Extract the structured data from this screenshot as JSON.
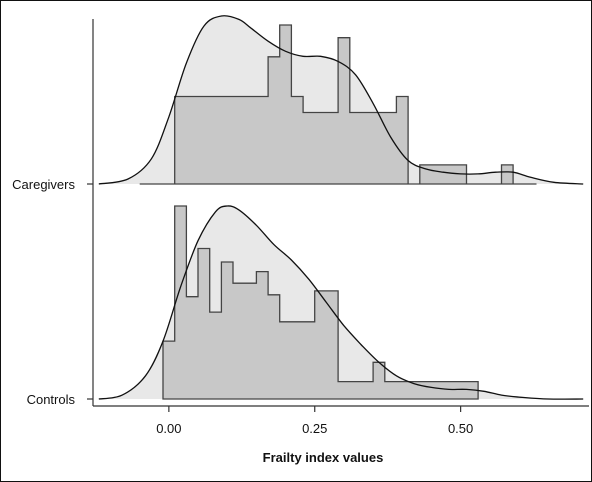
{
  "chart_data": {
    "type": "area",
    "title": "",
    "xlabel": "Frailty index values",
    "ylabel": "",
    "xlim": [
      -0.13,
      0.72
    ],
    "x_ticks": [
      0.0,
      0.25,
      0.5
    ],
    "x_tick_labels": [
      "0.00",
      "0.25",
      "0.50"
    ],
    "y_categories": [
      "Caregivers",
      "Controls"
    ],
    "grid": false,
    "legend": "none",
    "colors": {
      "density_fill": "#e8e8e8",
      "density_line": "#111111",
      "histogram_fill": "#c8c8c8",
      "histogram_line": "#444444",
      "axis": "#333333"
    },
    "series": [
      {
        "name": "Caregivers",
        "histogram_bin_edges": [
          -0.05,
          -0.01,
          0.01,
          0.03,
          0.05,
          0.07,
          0.09,
          0.11,
          0.13,
          0.15,
          0.17,
          0.19,
          0.21,
          0.23,
          0.25,
          0.27,
          0.29,
          0.31,
          0.33,
          0.35,
          0.37,
          0.39,
          0.41,
          0.43,
          0.45,
          0.47,
          0.49,
          0.51,
          0.53,
          0.55,
          0.57,
          0.59,
          0.61,
          0.63
        ],
        "histogram_values": [
          0,
          0,
          0.55,
          0.55,
          0.55,
          0.55,
          0.55,
          0.55,
          0.55,
          0.55,
          0.8,
          1.0,
          0.55,
          0.45,
          0.45,
          0.45,
          0.92,
          0.45,
          0.45,
          0.45,
          0.45,
          0.55,
          0,
          0.12,
          0.12,
          0.12,
          0.12,
          0,
          0,
          0,
          0.12,
          0,
          0
        ],
        "density_x": [
          -0.12,
          -0.07,
          -0.03,
          0.0,
          0.03,
          0.06,
          0.09,
          0.12,
          0.14,
          0.17,
          0.2,
          0.23,
          0.26,
          0.29,
          0.32,
          0.35,
          0.38,
          0.41,
          0.44,
          0.47,
          0.5,
          0.53,
          0.56,
          0.59,
          0.62,
          0.66,
          0.71
        ],
        "density_y": [
          0.0,
          0.03,
          0.15,
          0.4,
          0.72,
          0.94,
          1.0,
          0.98,
          0.93,
          0.85,
          0.79,
          0.76,
          0.76,
          0.73,
          0.65,
          0.48,
          0.28,
          0.14,
          0.09,
          0.07,
          0.06,
          0.06,
          0.07,
          0.07,
          0.04,
          0.01,
          0.0
        ]
      },
      {
        "name": "Controls",
        "histogram_bin_edges": [
          -0.01,
          0.01,
          0.03,
          0.05,
          0.07,
          0.09,
          0.11,
          0.13,
          0.15,
          0.17,
          0.19,
          0.21,
          0.23,
          0.25,
          0.27,
          0.29,
          0.31,
          0.33,
          0.35,
          0.37,
          0.39,
          0.41,
          0.43,
          0.45,
          0.47,
          0.49,
          0.51,
          0.53
        ],
        "histogram_values": [
          0.3,
          1.0,
          0.53,
          0.78,
          0.45,
          0.71,
          0.6,
          0.6,
          0.66,
          0.54,
          0.4,
          0.4,
          0.4,
          0.56,
          0.56,
          0.09,
          0.09,
          0.09,
          0.19,
          0.09,
          0.09,
          0.09,
          0.09,
          0.09,
          0.09,
          0.09,
          0.09
        ],
        "density_x": [
          -0.12,
          -0.08,
          -0.04,
          -0.01,
          0.02,
          0.05,
          0.08,
          0.1,
          0.12,
          0.15,
          0.18,
          0.21,
          0.24,
          0.27,
          0.3,
          0.33,
          0.36,
          0.39,
          0.42,
          0.45,
          0.48,
          0.51,
          0.54,
          0.57,
          0.6,
          0.65,
          0.71
        ],
        "density_y": [
          0.0,
          0.02,
          0.12,
          0.3,
          0.58,
          0.82,
          0.97,
          1.0,
          0.98,
          0.9,
          0.8,
          0.72,
          0.62,
          0.5,
          0.38,
          0.28,
          0.19,
          0.12,
          0.08,
          0.06,
          0.05,
          0.05,
          0.04,
          0.02,
          0.01,
          0.0,
          0.0
        ]
      }
    ]
  }
}
